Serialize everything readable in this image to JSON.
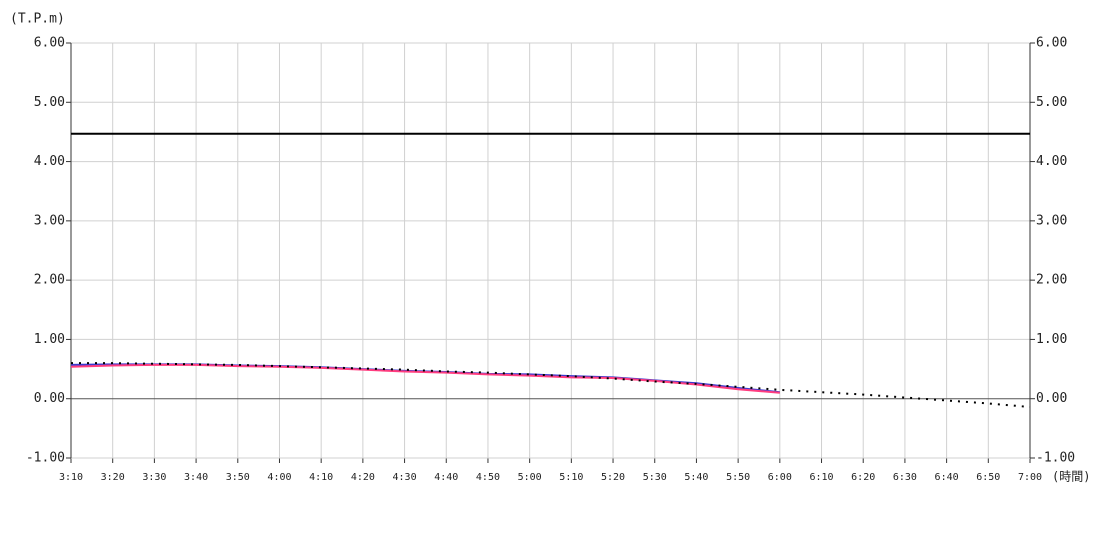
{
  "chart_data": {
    "type": "line",
    "y_label": "(T.P.m)",
    "x_label": "(時間)",
    "categories": [
      "3:10",
      "3:20",
      "3:30",
      "3:40",
      "3:50",
      "4:00",
      "4:10",
      "4:20",
      "4:30",
      "4:40",
      "4:50",
      "5:00",
      "5:10",
      "5:20",
      "5:30",
      "5:40",
      "5:50",
      "6:00",
      "6:10",
      "6:20",
      "6:30",
      "6:40",
      "6:50",
      "7:00"
    ],
    "series": [
      {
        "color": "#3b3bd0",
        "style": "solid",
        "values": [
          0.57,
          0.58,
          0.58,
          0.58,
          0.56,
          0.55,
          0.53,
          0.5,
          0.47,
          0.45,
          0.42,
          0.41,
          0.38,
          0.36,
          0.31,
          0.26,
          0.18,
          0.11,
          null,
          null,
          null,
          null,
          null,
          null
        ]
      },
      {
        "color": "#ff3d7f",
        "style": "solid",
        "values": [
          0.54,
          0.56,
          0.57,
          0.57,
          0.55,
          0.54,
          0.52,
          0.49,
          0.46,
          0.44,
          0.41,
          0.39,
          0.36,
          0.35,
          0.3,
          0.24,
          0.16,
          0.1,
          null,
          null,
          null,
          null,
          null,
          null
        ]
      },
      {
        "color": "#000000",
        "style": "dotted",
        "values": [
          0.6,
          0.6,
          0.59,
          0.58,
          0.57,
          0.55,
          0.53,
          0.51,
          0.49,
          0.46,
          0.44,
          0.41,
          0.38,
          0.34,
          0.29,
          0.25,
          0.2,
          0.15,
          0.11,
          0.07,
          0.02,
          -0.03,
          -0.08,
          -0.14
        ]
      }
    ],
    "hline": {
      "value": 4.47,
      "color": "#000000"
    },
    "ylim": [
      -1,
      6
    ],
    "yticks": [
      {
        "value": -1,
        "label": "-1.00"
      },
      {
        "value": 0,
        "label": "0.00"
      },
      {
        "value": 1,
        "label": "1.00"
      },
      {
        "value": 2,
        "label": "2.00"
      },
      {
        "value": 3,
        "label": "3.00"
      },
      {
        "value": 4,
        "label": "4.00"
      },
      {
        "value": 5,
        "label": "5.00"
      },
      {
        "value": 6,
        "label": "6.00"
      }
    ],
    "grid": true
  }
}
